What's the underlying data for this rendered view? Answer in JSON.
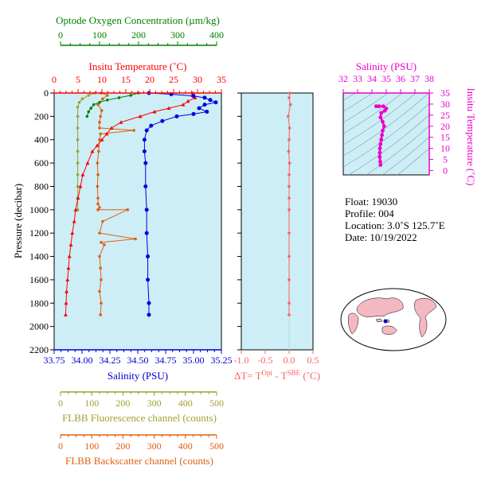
{
  "chart_data": {
    "type": "scatter",
    "pressure_axis": {
      "label": "Pressure (decibar)",
      "range": [
        0,
        2200
      ],
      "ticks": [
        "0",
        "200",
        "400",
        "600",
        "800",
        "1000",
        "1200",
        "1400",
        "1600",
        "1800",
        "2000",
        "2200"
      ]
    },
    "x_axes": {
      "oxygen": {
        "label": "Optode Oxygen Concentration (µm/kg)",
        "range": [
          0,
          400
        ],
        "ticks": [
          "0",
          "100",
          "200",
          "300",
          "400"
        ],
        "color": "#008000"
      },
      "temperature": {
        "label": "Insitu Temperature (˚C)",
        "range": [
          0,
          35
        ],
        "ticks": [
          "0",
          "5",
          "10",
          "15",
          "20",
          "25",
          "30",
          "35"
        ],
        "color": "#ff0000"
      },
      "salinity": {
        "label": "Salinity (PSU)",
        "range": [
          33.75,
          35.25
        ],
        "ticks": [
          "33.75",
          "34.00",
          "34.25",
          "34.50",
          "34.75",
          "35.00",
          "35.25"
        ],
        "color": "#0000cc"
      },
      "fluorescence": {
        "label": "FLBB Fluorescence channel (counts)",
        "range": [
          0,
          500
        ],
        "ticks": [
          "0",
          "100",
          "200",
          "300",
          "400",
          "500"
        ],
        "color": "#a0a030"
      },
      "backscatter": {
        "label": "FLBB Backscatter channel (counts)",
        "range": [
          0,
          500
        ],
        "ticks": [
          "0",
          "100",
          "200",
          "300",
          "400",
          "500"
        ],
        "color": "#e06010"
      }
    },
    "series": [
      {
        "name": "Salinity",
        "color": "#0000dd",
        "points": [
          [
            34.6,
            0
          ],
          [
            34.8,
            10
          ],
          [
            35.0,
            25
          ],
          [
            35.1,
            40
          ],
          [
            35.15,
            60
          ],
          [
            35.2,
            80
          ],
          [
            35.1,
            100
          ],
          [
            35.05,
            130
          ],
          [
            35.12,
            160
          ],
          [
            35.0,
            180
          ],
          [
            34.85,
            200
          ],
          [
            34.72,
            240
          ],
          [
            34.62,
            280
          ],
          [
            34.58,
            320
          ],
          [
            34.56,
            400
          ],
          [
            34.56,
            500
          ],
          [
            34.57,
            600
          ],
          [
            34.57,
            800
          ],
          [
            34.58,
            1000
          ],
          [
            34.58,
            1200
          ],
          [
            34.59,
            1400
          ],
          [
            34.59,
            1600
          ],
          [
            34.6,
            1800
          ],
          [
            34.6,
            1900
          ]
        ]
      },
      {
        "name": "Temperature",
        "color": "#ff0000",
        "points": [
          [
            29.0,
            0
          ],
          [
            29.0,
            20
          ],
          [
            29.5,
            40
          ],
          [
            28.0,
            70
          ],
          [
            27.0,
            100
          ],
          [
            24.0,
            130
          ],
          [
            21.0,
            160
          ],
          [
            18.0,
            200
          ],
          [
            14.0,
            250
          ],
          [
            12.0,
            300
          ],
          [
            11.0,
            350
          ],
          [
            10.0,
            400
          ],
          [
            9.0,
            450
          ],
          [
            8.0,
            500
          ],
          [
            7.0,
            600
          ],
          [
            6.0,
            700
          ],
          [
            5.5,
            800
          ],
          [
            5.0,
            900
          ],
          [
            4.5,
            1000
          ],
          [
            4.2,
            1100
          ],
          [
            3.8,
            1200
          ],
          [
            3.5,
            1300
          ],
          [
            3.2,
            1400
          ],
          [
            3.0,
            1500
          ],
          [
            2.8,
            1600
          ],
          [
            2.6,
            1700
          ],
          [
            2.5,
            1800
          ],
          [
            2.4,
            1900
          ]
        ]
      },
      {
        "name": "Oxygen",
        "color": "#008000",
        "points": [
          [
            200,
            0
          ],
          [
            180,
            20
          ],
          [
            150,
            40
          ],
          [
            120,
            60
          ],
          [
            100,
            80
          ],
          [
            85,
            100
          ],
          [
            78,
            130
          ],
          [
            72,
            160
          ],
          [
            68,
            200
          ]
        ]
      },
      {
        "name": "Fluorescence",
        "color": "#a0a030",
        "points": [
          [
            110,
            0
          ],
          [
            90,
            20
          ],
          [
            70,
            50
          ],
          [
            60,
            80
          ],
          [
            55,
            120
          ],
          [
            55,
            200
          ],
          [
            55,
            300
          ],
          [
            55,
            400
          ],
          [
            55,
            500
          ],
          [
            55,
            600
          ],
          [
            55,
            700
          ],
          [
            55,
            800
          ],
          [
            55,
            900
          ],
          [
            55,
            1000
          ]
        ]
      },
      {
        "name": "Backscatter",
        "color": "#e06010",
        "points": [
          [
            130,
            0
          ],
          [
            150,
            20
          ],
          [
            135,
            50
          ],
          [
            120,
            100
          ],
          [
            132,
            150
          ],
          [
            128,
            200
          ],
          [
            125,
            250
          ],
          [
            125,
            300
          ],
          [
            235,
            320
          ],
          [
            128,
            350
          ],
          [
            125,
            400
          ],
          [
            122,
            500
          ],
          [
            118,
            600
          ],
          [
            120,
            700
          ],
          [
            118,
            800
          ],
          [
            120,
            900
          ],
          [
            120,
            950
          ],
          [
            125,
            980
          ],
          [
            120,
            1000
          ],
          [
            215,
            1000
          ],
          [
            135,
            1100
          ],
          [
            125,
            1200
          ],
          [
            240,
            1250
          ],
          [
            130,
            1280
          ],
          [
            140,
            1300
          ],
          [
            125,
            1400
          ],
          [
            128,
            1500
          ],
          [
            130,
            1600
          ],
          [
            125,
            1700
          ],
          [
            130,
            1800
          ],
          [
            128,
            1900
          ]
        ]
      }
    ],
    "delta_panel": {
      "label": "ΔT= T^Opt - T^SBE (˚C)",
      "xlabel_main": "ΔT= T",
      "sup1": "Opt",
      "mid": " - T",
      "sup2": "SBE",
      "unit": " (˚C)",
      "range": [
        -1.0,
        0.5
      ],
      "ticks": [
        "-1.0",
        "-0.5",
        "0.0",
        "0.5"
      ],
      "color": "#ff6060",
      "points": [
        [
          0.02,
          0
        ],
        [
          0.0,
          40
        ],
        [
          0.03,
          100
        ],
        [
          -0.02,
          200
        ],
        [
          0.01,
          300
        ],
        [
          0.0,
          400
        ],
        [
          -0.01,
          500
        ],
        [
          0.01,
          600
        ],
        [
          0.0,
          700
        ],
        [
          0.0,
          800
        ],
        [
          0.0,
          900
        ],
        [
          0.0,
          1000
        ],
        [
          0.0,
          1200
        ],
        [
          0.0,
          1400
        ],
        [
          0.0,
          1600
        ],
        [
          0.0,
          1800
        ],
        [
          0.0,
          1900
        ]
      ]
    },
    "ts_panel": {
      "xlabel": "Salinity (PSU)",
      "ylabel": "Insitu Temperature (˚C)",
      "xticks": [
        "32",
        "33",
        "34",
        "35",
        "36",
        "37",
        "38"
      ],
      "yticks": [
        "0",
        "5",
        "10",
        "15",
        "20",
        "25",
        "30",
        "35"
      ],
      "xrange": [
        32,
        38
      ],
      "yrange": [
        -2,
        35
      ],
      "color": "#ee00cc",
      "points": [
        [
          34.6,
          2.5
        ],
        [
          34.58,
          4
        ],
        [
          34.55,
          6
        ],
        [
          34.55,
          8
        ],
        [
          34.56,
          10
        ],
        [
          34.6,
          12
        ],
        [
          34.65,
          14
        ],
        [
          34.7,
          16
        ],
        [
          34.75,
          18
        ],
        [
          34.85,
          20
        ],
        [
          34.75,
          22
        ],
        [
          34.6,
          24
        ],
        [
          34.65,
          26
        ],
        [
          34.9,
          27
        ],
        [
          35.0,
          28
        ],
        [
          34.8,
          29
        ],
        [
          34.5,
          29
        ],
        [
          34.3,
          29
        ]
      ]
    },
    "info": {
      "float": "Float:  19030",
      "profile": "Profile:  004",
      "location": "Location:  3.0˚S  125.7˚E",
      "date": "Date:  10/19/2022"
    }
  }
}
